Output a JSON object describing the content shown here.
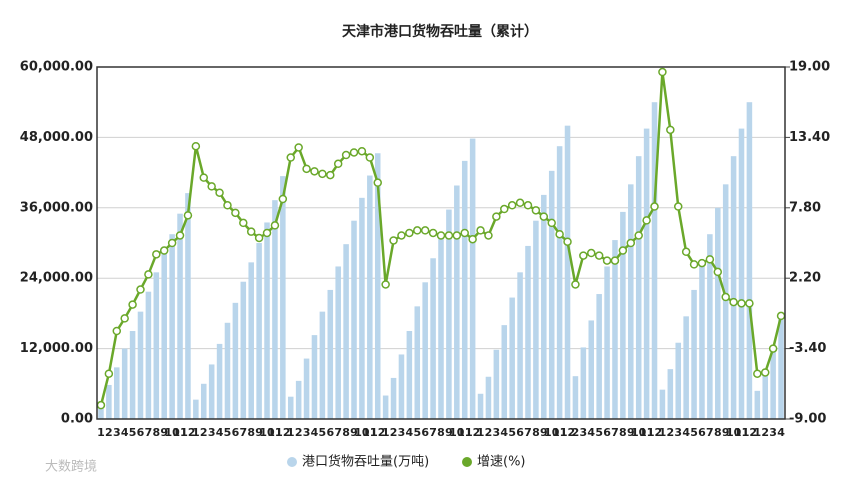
{
  "chart_data": {
    "type": "bar-line",
    "title": "天津市港口货物吞吐量（累计）",
    "watermark": "大数跨境",
    "categories": [
      "1",
      "2",
      "3",
      "4",
      "5",
      "6",
      "7",
      "8",
      "9",
      "10",
      "11",
      "12",
      "1",
      "2",
      "3",
      "4",
      "5",
      "6",
      "7",
      "8",
      "9",
      "10",
      "11",
      "12",
      "1",
      "2",
      "3",
      "4",
      "5",
      "6",
      "7",
      "8",
      "9",
      "10",
      "11",
      "12",
      "1",
      "2",
      "3",
      "4",
      "5",
      "6",
      "7",
      "8",
      "9",
      "10",
      "11",
      "12",
      "1",
      "2",
      "3",
      "4",
      "5",
      "6",
      "7",
      "8",
      "9",
      "10",
      "11",
      "12",
      "2",
      "3",
      "4",
      "5",
      "6",
      "7",
      "8",
      "9",
      "10",
      "11",
      "12",
      "1",
      "2",
      "3",
      "4",
      "5",
      "6",
      "7",
      "8",
      "9",
      "10",
      "11",
      "12",
      "1",
      "2",
      "3",
      "4"
    ],
    "series": [
      {
        "name": "港口货物吞吐量(万吨)",
        "kind": "bar",
        "axis": "y",
        "color": "#b9d5eb",
        "values": [
          3000,
          5800,
          8800,
          12000,
          15000,
          18300,
          21700,
          25000,
          28200,
          31500,
          35000,
          38500,
          3300,
          6000,
          9300,
          12800,
          16400,
          19800,
          23400,
          26700,
          30000,
          33500,
          37300,
          41400,
          3800,
          6500,
          10300,
          14300,
          18300,
          22000,
          26000,
          29800,
          33800,
          37700,
          41500,
          45300,
          4000,
          7000,
          11000,
          15000,
          19200,
          23300,
          27400,
          31500,
          35700,
          39800,
          44000,
          47800,
          4300,
          7200,
          11800,
          16000,
          20700,
          25000,
          29500,
          33800,
          38200,
          42300,
          46500,
          50000,
          7300,
          12200,
          16800,
          21300,
          26000,
          30500,
          35300,
          40000,
          44800,
          49500,
          54000,
          5000,
          8500,
          13000,
          17500,
          22000,
          26500,
          31500,
          36000,
          40000,
          44800,
          49500,
          54000,
          4800,
          8500,
          12000,
          17000
        ]
      },
      {
        "name": "增速(%)",
        "kind": "line",
        "axis": "y2",
        "color": "#6aa82a",
        "values": [
          -7.9,
          -5.4,
          -2.0,
          -1.0,
          0.1,
          1.3,
          2.5,
          4.1,
          4.4,
          5.0,
          5.6,
          7.2,
          12.7,
          10.2,
          9.5,
          9.0,
          8.0,
          7.4,
          6.6,
          5.9,
          5.4,
          5.8,
          6.4,
          8.5,
          11.8,
          12.6,
          10.9,
          10.7,
          10.5,
          10.4,
          11.3,
          12.0,
          12.2,
          12.3,
          11.8,
          9.8,
          1.7,
          5.2,
          5.6,
          5.8,
          6.0,
          6.0,
          5.8,
          5.6,
          5.6,
          5.6,
          5.8,
          5.3,
          6.0,
          5.6,
          7.1,
          7.7,
          8.0,
          8.2,
          8.0,
          7.6,
          7.1,
          6.6,
          5.7,
          5.1,
          1.7,
          4.0,
          4.2,
          4.0,
          3.6,
          3.6,
          4.4,
          5.0,
          5.6,
          6.8,
          7.9,
          18.6,
          14.0,
          7.9,
          4.3,
          3.3,
          3.4,
          3.7,
          2.7,
          0.7,
          0.3,
          0.2,
          0.2,
          -5.4,
          -5.3,
          -3.4,
          -0.8
        ]
      }
    ],
    "ylim": [
      0,
      60000
    ],
    "yticks": [
      {
        "value": 0,
        "label": "0.00"
      },
      {
        "value": 12000,
        "label": "12,000.00"
      },
      {
        "value": 24000,
        "label": "24,000.00"
      },
      {
        "value": 36000,
        "label": "36,000.00"
      },
      {
        "value": 48000,
        "label": "48,000.00"
      },
      {
        "value": 60000,
        "label": "60,000.00"
      }
    ],
    "y2lim": [
      -9,
      19
    ],
    "y2ticks": [
      {
        "value": -9,
        "label": "-9.00"
      },
      {
        "value": -3.4,
        "label": "-3.40"
      },
      {
        "value": 2.2,
        "label": "2.20"
      },
      {
        "value": 7.8,
        "label": "7.80"
      },
      {
        "value": 13.4,
        "label": "13.40"
      },
      {
        "value": 19,
        "label": "19.00"
      }
    ],
    "grid": true
  }
}
